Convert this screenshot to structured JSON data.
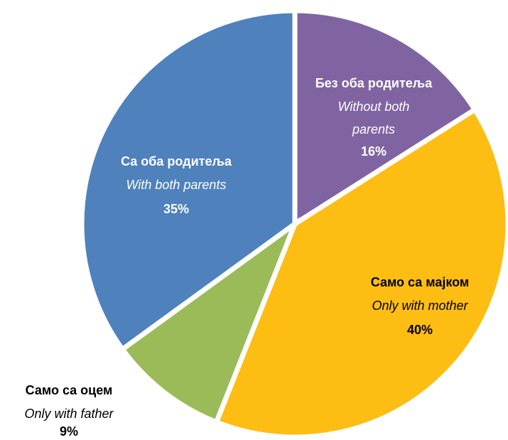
{
  "chart_data": {
    "type": "pie",
    "categories": [
      "Без оба родитеља",
      "Само са мајком",
      "Само са оцем",
      "Са оба родитеља"
    ],
    "subcategories": [
      "Without both parents",
      "Only with mother",
      "Only with father",
      "With both parents"
    ],
    "values": [
      16,
      40,
      9,
      35
    ],
    "value_labels": [
      "16%",
      "40%",
      "9%",
      "35%"
    ],
    "colors": [
      "#8064a2",
      "#fdbd13",
      "#9bbb59",
      "#4f81bd"
    ]
  }
}
